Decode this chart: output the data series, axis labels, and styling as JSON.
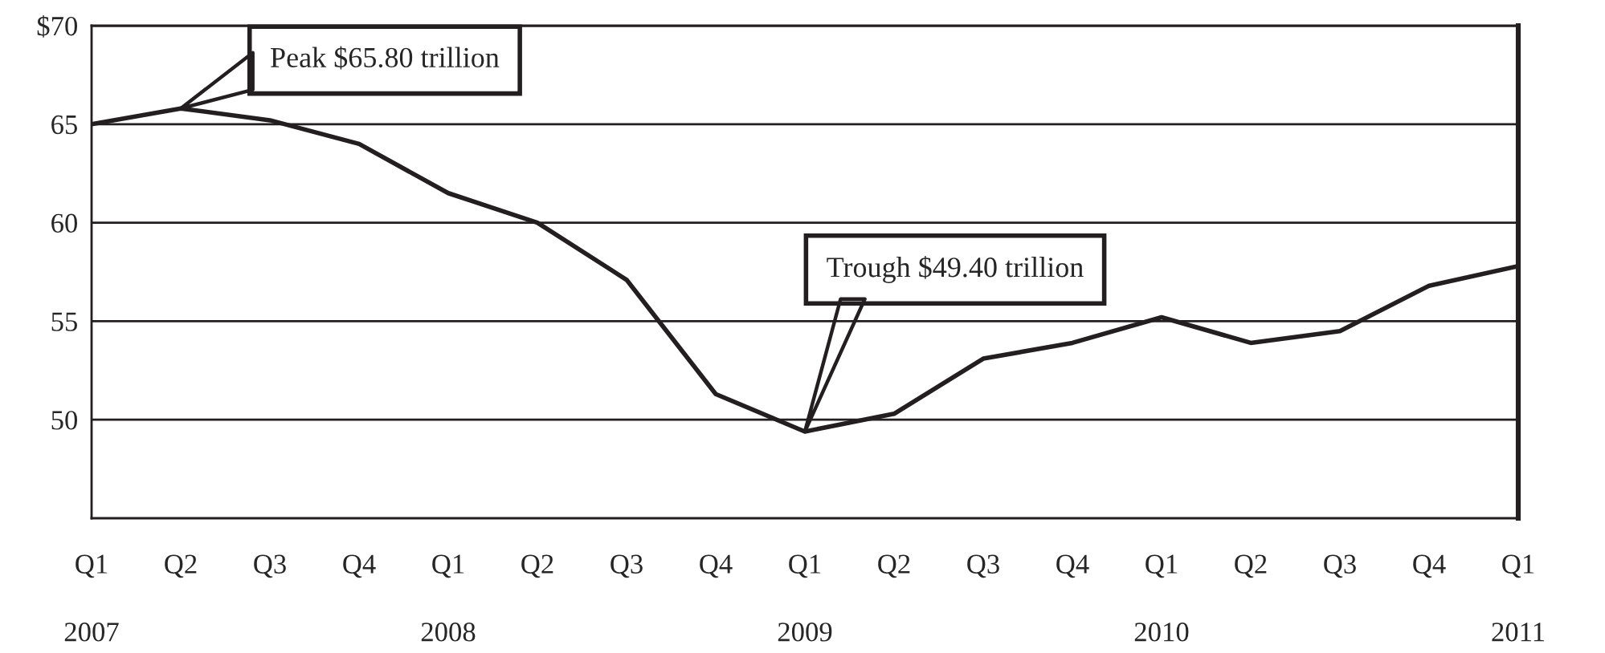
{
  "chart_data": {
    "type": "line",
    "categories": [
      "Q1\n\n2007",
      "Q2",
      "Q3",
      "Q4",
      "Q1\n\n2008",
      "Q2",
      "Q3",
      "Q4",
      "Q1\n\n2009",
      "Q2",
      "Q3",
      "Q4",
      "Q1\n\n2010",
      "Q2",
      "Q3",
      "Q4",
      "Q1\n\n2011"
    ],
    "series": [
      {
        "color": "#231f20",
        "values": [
          65.0,
          65.8,
          65.2,
          64.0,
          61.5,
          60.0,
          57.1,
          51.3,
          49.4,
          50.3,
          53.1,
          53.9,
          55.2,
          53.9,
          54.5,
          56.8,
          57.8
        ]
      }
    ],
    "ylim": [
      45,
      70
    ],
    "yticks": [
      50,
      55,
      60,
      65,
      {
        "value": 70,
        "label": "$70"
      }
    ],
    "grid": "y",
    "marker": "none",
    "line_style": "solid",
    "annotations": [
      "Peak $65.80 trillion",
      "Trough $49.40 trillion"
    ]
  }
}
